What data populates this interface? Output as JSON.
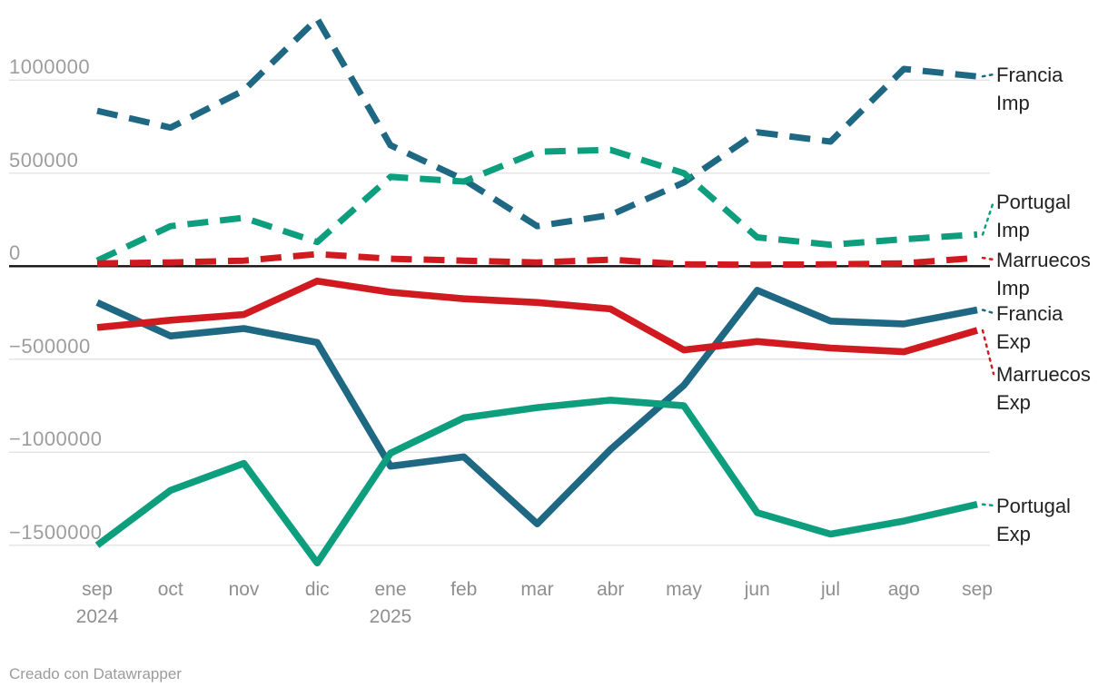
{
  "page": {
    "background": "#ffffff"
  },
  "footer": {
    "credit": "Creado con Datawrapper"
  },
  "chart_data": {
    "type": "line",
    "title": "",
    "xlabel": "",
    "ylabel": "",
    "grid": true,
    "legend_position": "right-edge-labels",
    "y_ticks": [
      1000000,
      500000,
      0,
      -500000,
      -1000000,
      -1500000
    ],
    "ylim": [
      -1650000,
      1430000
    ],
    "categories": [
      "sep",
      "oct",
      "nov",
      "dic",
      "ene",
      "feb",
      "mar",
      "abr",
      "may",
      "jun",
      "jul",
      "ago",
      "sep"
    ],
    "category_year_labels": [
      "2024",
      "",
      "",
      "",
      "2025",
      "",
      "",
      "",
      "",
      "",
      "",
      "",
      ""
    ],
    "series": [
      {
        "name": "Francia Imp",
        "label_lines": [
          "Francia",
          "Imp"
        ],
        "color": "#1e6884",
        "line_style": "dashed",
        "values": [
          835000,
          745000,
          945000,
          1330000,
          650000,
          465000,
          215000,
          275000,
          450000,
          720000,
          670000,
          1060000,
          1020000
        ]
      },
      {
        "name": "Portugal Imp",
        "label_lines": [
          "Portugal",
          "Imp"
        ],
        "color": "#0d9e7d",
        "line_style": "dashed",
        "values": [
          30000,
          215000,
          260000,
          130000,
          480000,
          455000,
          615000,
          625000,
          500000,
          155000,
          115000,
          145000,
          170000
        ]
      },
      {
        "name": "Marruecos Imp",
        "label_lines": [
          "Marruecos",
          "Imp"
        ],
        "color": "#d01a20",
        "line_style": "dashed",
        "values": [
          15000,
          20000,
          30000,
          65000,
          40000,
          30000,
          20000,
          35000,
          10000,
          8000,
          10000,
          15000,
          45000
        ]
      },
      {
        "name": "Francia Exp",
        "label_lines": [
          "Francia",
          "Exp"
        ],
        "color": "#1e6884",
        "line_style": "solid",
        "values": [
          -195000,
          -375000,
          -335000,
          -410000,
          -1075000,
          -1025000,
          -1385000,
          -985000,
          -640000,
          -130000,
          -295000,
          -310000,
          -235000
        ]
      },
      {
        "name": "Marruecos Exp",
        "label_lines": [
          "Marruecos",
          "Exp"
        ],
        "color": "#d01a20",
        "line_style": "solid",
        "values": [
          -330000,
          -290000,
          -260000,
          -80000,
          -140000,
          -175000,
          -195000,
          -230000,
          -450000,
          -405000,
          -440000,
          -460000,
          -345000
        ]
      },
      {
        "name": "Portugal Exp",
        "label_lines": [
          "Portugal",
          "Exp"
        ],
        "color": "#0d9e7d",
        "line_style": "solid",
        "values": [
          -1500000,
          -1205000,
          -1060000,
          -1595000,
          -1005000,
          -815000,
          -760000,
          -720000,
          -750000,
          -1325000,
          -1440000,
          -1370000,
          -1280000
        ]
      }
    ]
  }
}
